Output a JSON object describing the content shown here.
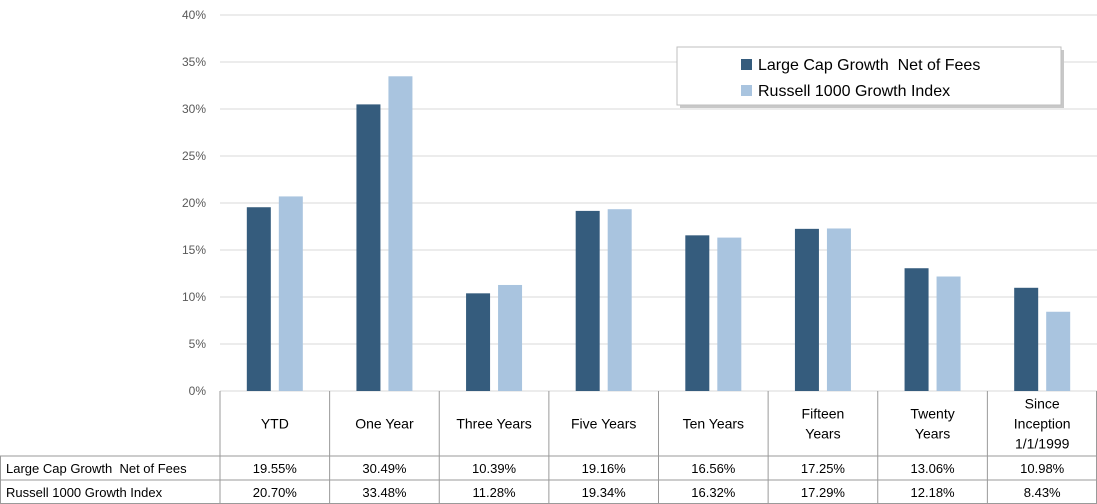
{
  "chart_data": {
    "type": "bar",
    "categories": [
      "YTD",
      "One Year",
      "Three Years",
      "Five Years",
      "Ten Years",
      "Fifteen Years",
      "Twenty Years",
      "Since Inception 1/1/1999"
    ],
    "category_lines": [
      [
        "YTD"
      ],
      [
        "One Year"
      ],
      [
        "Three Years"
      ],
      [
        "Five Years"
      ],
      [
        "Ten Years"
      ],
      [
        "Fifteen",
        "Years"
      ],
      [
        "Twenty",
        "Years"
      ],
      [
        "Since",
        "Inception",
        "1/1/1999"
      ]
    ],
    "series": [
      {
        "name": "Large Cap Growth  Net of Fees",
        "color": "#355C7D",
        "values": [
          19.55,
          30.49,
          10.39,
          19.16,
          16.56,
          17.25,
          13.06,
          10.98
        ],
        "labels": [
          "19.55%",
          "30.49%",
          "10.39%",
          "19.16%",
          "16.56%",
          "17.25%",
          "13.06%",
          "10.98%"
        ]
      },
      {
        "name": "Russell 1000 Growth Index",
        "color": "#A9C4DF",
        "values": [
          20.7,
          33.48,
          11.28,
          19.34,
          16.32,
          17.29,
          12.18,
          8.43
        ],
        "labels": [
          "20.70%",
          "33.48%",
          "11.28%",
          "19.34%",
          "16.32%",
          "17.29%",
          "12.18%",
          "8.43%"
        ]
      }
    ],
    "yticks": [
      "0%",
      "5%",
      "10%",
      "15%",
      "20%",
      "25%",
      "30%",
      "35%",
      "40%"
    ],
    "ylim": [
      0,
      40
    ],
    "grid": true,
    "legend_position": "top-right",
    "data_table": true
  }
}
